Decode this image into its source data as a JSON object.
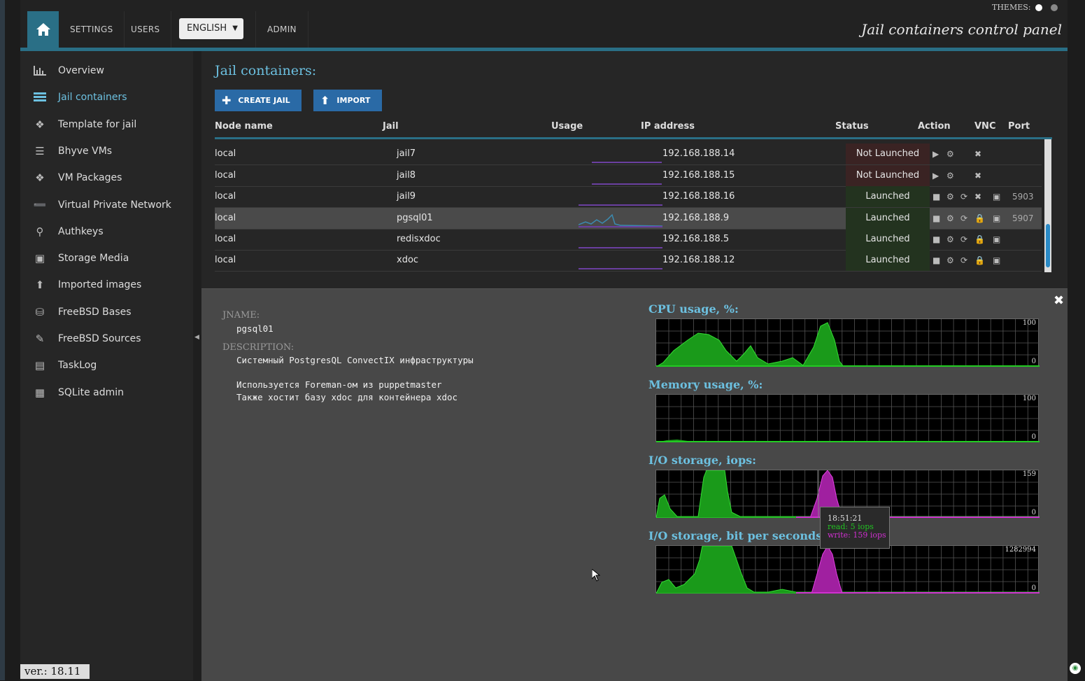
{
  "topbar": {
    "nav": [
      "SETTINGS",
      "USERS",
      "ADMIN"
    ],
    "language": "ENGLISH",
    "title": "Jail containers control panel",
    "themes_label": "THEMES:"
  },
  "sidebar": {
    "items": [
      {
        "label": "Overview",
        "icon": "bar-chart-icon"
      },
      {
        "label": "Jail containers",
        "icon": "server-icon"
      },
      {
        "label": "Template for jail",
        "icon": "cubes-icon"
      },
      {
        "label": "Bhyve VMs",
        "icon": "list-icon"
      },
      {
        "label": "VM Packages",
        "icon": "cubes-icon"
      },
      {
        "label": "Virtual Private Network",
        "icon": "plug-icon"
      },
      {
        "label": "Authkeys",
        "icon": "key-icon"
      },
      {
        "label": "Storage Media",
        "icon": "inbox-icon"
      },
      {
        "label": "Imported images",
        "icon": "upload-icon"
      },
      {
        "label": "FreeBSD Bases",
        "icon": "database-icon"
      },
      {
        "label": "FreeBSD Sources",
        "icon": "edit-icon"
      },
      {
        "label": "TaskLog",
        "icon": "list-alt-icon"
      },
      {
        "label": "SQLite admin",
        "icon": "calendar-icon"
      }
    ],
    "version": "ver.: 18.11"
  },
  "main": {
    "title": "Jail containers:",
    "create_label": "CREATE JAIL",
    "import_label": "IMPORT",
    "columns": [
      "Node name",
      "Jail",
      "Usage",
      "IP address",
      "Status",
      "Action",
      "VNC",
      "Port"
    ],
    "rows": [
      {
        "node": "local",
        "jail": "jail7",
        "ip": "192.168.188.14",
        "status": "Not Launched",
        "port": ""
      },
      {
        "node": "local",
        "jail": "jail8",
        "ip": "192.168.188.15",
        "status": "Not Launched",
        "port": ""
      },
      {
        "node": "local",
        "jail": "jail9",
        "ip": "192.168.188.16",
        "status": "Launched",
        "port": "5903"
      },
      {
        "node": "local",
        "jail": "pgsql01",
        "ip": "192.168.188.9",
        "status": "Launched",
        "port": "5907"
      },
      {
        "node": "local",
        "jail": "redisxdoc",
        "ip": "192.168.188.5",
        "status": "Launched",
        "port": ""
      },
      {
        "node": "local",
        "jail": "xdoc",
        "ip": "192.168.188.12",
        "status": "Launched",
        "port": ""
      }
    ]
  },
  "detail": {
    "jname_label": "JNAME:",
    "jname": "pgsql01",
    "description_label": "DESCRIPTION:",
    "description_lines": [
      "Системный PostgresQL ConvectIX инфраструктуры",
      "",
      "Используется Foreman-ом из puppetmaster",
      "Также хостит базу xdoc для контейнера xdoc"
    ],
    "graphs": [
      {
        "title": "CPU usage, %:",
        "max": "100",
        "min": "0"
      },
      {
        "title": "Memory usage, %:",
        "max": "100",
        "min": "0"
      },
      {
        "title": "I/O storage, iops:",
        "max": "159",
        "min": "0"
      },
      {
        "title": "I/O storage, bit per seconds",
        "max": "1282994",
        "min": "0"
      }
    ],
    "tooltip": {
      "time": "18:51:21",
      "read": "read: 5 iops",
      "write": "write: 159 iops"
    }
  },
  "colors": {
    "accent": "#2a6f86",
    "link": "#6cc0e0",
    "read": "#22c222",
    "write": "#d030d0"
  }
}
